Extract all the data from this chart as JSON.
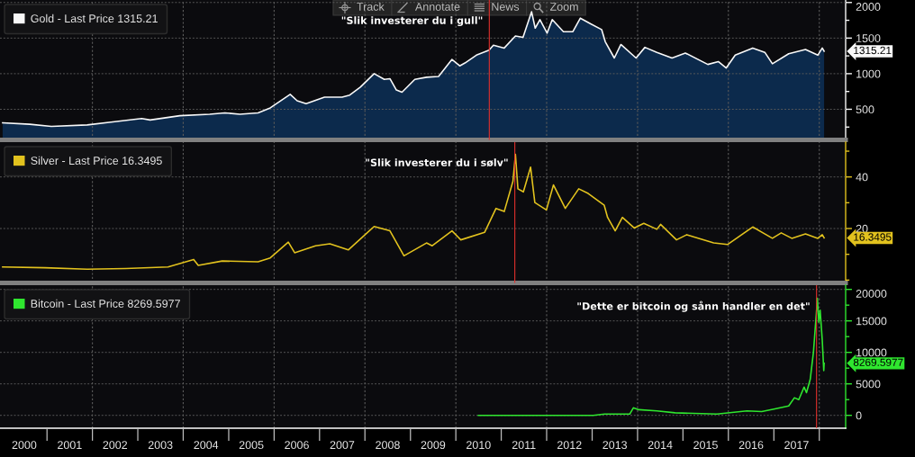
{
  "chart_data": [
    {
      "type": "area",
      "series": [
        {
          "name": "Gold - Last Price 1315.21",
          "color": "#f8f8f8",
          "x": [
            "2000-01-10",
            "2000-08-15",
            "2001-02-05",
            "2001-11-20",
            "2002-05-30",
            "2003-02-01",
            "2003-04-10",
            "2003-12-05",
            "2004-08-01",
            "2004-12-01",
            "2005-04-01",
            "2005-08-25",
            "2005-12-01",
            "2006-05-10",
            "2006-07-05",
            "2006-09-15",
            "2007-02-10",
            "2007-07-01",
            "2007-09-01",
            "2007-11-25",
            "2008-03-15",
            "2008-06-05",
            "2008-07-20",
            "2008-09-10",
            "2008-10-25",
            "2009-02-05",
            "2009-05-10",
            "2009-08-15",
            "2009-12-01",
            "2010-02-01",
            "2010-03-15",
            "2010-06-15",
            "2010-09-25",
            "2010-10-30",
            "2011-01-25",
            "2011-04-25",
            "2011-06-25",
            "2011-09-02",
            "2011-10-01",
            "2011-11-08",
            "2012-01-05",
            "2012-02-15",
            "2012-05-15",
            "2012-07-30",
            "2012-09-28",
            "2012-12-20",
            "2013-03-18",
            "2013-04-16",
            "2013-06-28",
            "2013-08-20",
            "2013-12-20",
            "2014-03-01",
            "2014-06-05",
            "2014-10-05",
            "2015-01-20",
            "2015-07-20",
            "2015-10-12",
            "2015-12-15",
            "2016-02-25",
            "2016-07-15",
            "2016-10-20",
            "2016-12-20",
            "2017-04-30",
            "2017-09-12",
            "2017-12-20",
            "2018-01-25",
            "2018-02-09"
          ],
          "values": [
            310,
            290,
            260,
            280,
            320,
            370,
            350,
            410,
            430,
            450,
            430,
            450,
            520,
            710,
            620,
            580,
            670,
            670,
            700,
            810,
            1000,
            920,
            930,
            770,
            740,
            920,
            950,
            960,
            1200,
            1110,
            1150,
            1260,
            1330,
            1400,
            1360,
            1530,
            1510,
            1870,
            1640,
            1760,
            1570,
            1760,
            1590,
            1590,
            1780,
            1700,
            1620,
            1450,
            1220,
            1410,
            1220,
            1370,
            1300,
            1220,
            1290,
            1130,
            1170,
            1080,
            1260,
            1360,
            1300,
            1140,
            1280,
            1340,
            1260,
            1360,
            1315.21
          ]
        }
      ],
      "xlim": [
        "1999-12-20",
        "2018-08-01"
      ],
      "ylim": [
        70,
        2035
      ],
      "yticks": [
        {
          "value": 250,
          "label": null
        },
        500,
        {
          "value": 750,
          "label": null
        },
        1000,
        {
          "value": 1250,
          "label": null
        },
        1500,
        {
          "value": 1750,
          "label": null
        },
        2000
      ],
      "tick_labels": "y",
      "grid": "y",
      "legend": "top left",
      "ref_lines": [
        {
          "axis": "x",
          "value": "2002-01-01",
          "color": "#5a5a5a",
          "line_style": "dotted"
        },
        {
          "axis": "x",
          "value": "2004-01-01",
          "color": "#5a5a5a",
          "line_style": "dotted"
        },
        {
          "axis": "x",
          "value": "2006-01-01",
          "color": "#5a5a5a",
          "line_style": "dotted"
        },
        {
          "axis": "x",
          "value": "2008-01-01",
          "color": "#5a5a5a",
          "line_style": "dotted"
        },
        {
          "axis": "x",
          "value": "2010-01-01",
          "color": "#5a5a5a",
          "line_style": "dotted"
        },
        {
          "axis": "x",
          "value": "2010-09-27",
          "label": "\"Slik investerer du i gull\"",
          "color": "#e0302c",
          "line_style": "solid"
        },
        {
          "axis": "x",
          "value": "2012-01-01",
          "color": "#5a5a5a",
          "line_style": "dotted"
        },
        {
          "axis": "x",
          "value": "2014-01-01",
          "color": "#5a5a5a",
          "line_style": "dotted"
        },
        {
          "axis": "x",
          "value": "2016-01-01",
          "color": "#5a5a5a",
          "line_style": "dotted"
        },
        {
          "axis": "x",
          "value": "2018-01-01",
          "color": "#5a5a5a",
          "line_style": "dotted"
        }
      ],
      "annotations": [
        "Track",
        "Annotate",
        "News",
        "Zoom",
        "1315.21"
      ]
    },
    {
      "type": "line",
      "series": [
        {
          "name": "Silver - Last Price 16.3495",
          "color": "#e2c21e",
          "x": [
            "2000-01-10",
            "2000-12-15",
            "2001-11-20",
            "2002-09-25",
            "2003-09-01",
            "2004-03-25",
            "2004-05-01",
            "2004-11-10",
            "2005-08-25",
            "2005-12-01",
            "2006-04-25",
            "2006-06-15",
            "2006-11-30",
            "2007-03-25",
            "2007-08-20",
            "2008-03-15",
            "2008-07-20",
            "2008-11-10",
            "2009-05-10",
            "2009-06-25",
            "2009-12-01",
            "2010-02-10",
            "2010-08-20",
            "2010-11-20",
            "2011-01-25",
            "2011-04-05",
            "2011-04-25",
            "2011-05-15",
            "2011-06-28",
            "2011-08-25",
            "2011-09-28",
            "2011-12-30",
            "2012-02-25",
            "2012-05-30",
            "2012-09-15",
            "2012-11-30",
            "2013-04-08",
            "2013-05-05",
            "2013-07-05",
            "2013-09-01",
            "2013-12-05",
            "2014-02-20",
            "2014-06-05",
            "2014-07-05",
            "2014-11-10",
            "2015-02-01",
            "2015-09-05",
            "2015-12-25",
            "2016-07-15",
            "2016-12-20",
            "2017-03-01",
            "2017-05-25",
            "2017-09-12",
            "2017-12-20",
            "2018-01-25",
            "2018-02-09"
          ],
          "values": [
            5.1,
            4.8,
            4.2,
            4.5,
            5.1,
            8.0,
            5.7,
            7.4,
            7.1,
            8.6,
            14.7,
            10.6,
            13.3,
            14.1,
            11.7,
            20.8,
            19.1,
            9.4,
            14.4,
            13.3,
            19.1,
            15.6,
            18.5,
            27.8,
            26.6,
            38.3,
            48.8,
            35.4,
            34.2,
            43.8,
            30.1,
            27.2,
            36.9,
            27.8,
            35.4,
            33.6,
            29.0,
            24.3,
            19.1,
            24.3,
            20.2,
            22.0,
            19.7,
            21.6,
            15.6,
            17.6,
            14.4,
            13.8,
            20.6,
            16.2,
            18.3,
            16.2,
            17.9,
            16.2,
            17.6,
            16.3495
          ]
        }
      ],
      "xlim": [
        "1999-12-20",
        "2018-08-01"
      ],
      "ylim": [
        -1.1,
        53.5
      ],
      "yticks": [
        {
          "value": 0,
          "label": null
        },
        {
          "value": 10,
          "label": null
        },
        20,
        {
          "value": 30,
          "label": null
        },
        40,
        {
          "value": 50,
          "label": null
        }
      ],
      "tick_labels": "y",
      "grid": "y",
      "legend": "top left",
      "ref_lines": [
        {
          "axis": "x",
          "value": "2002-01-01",
          "color": "#5a5a5a",
          "line_style": "dotted"
        },
        {
          "axis": "x",
          "value": "2004-01-01",
          "color": "#5a5a5a",
          "line_style": "dotted"
        },
        {
          "axis": "x",
          "value": "2006-01-01",
          "color": "#5a5a5a",
          "line_style": "dotted"
        },
        {
          "axis": "x",
          "value": "2008-01-01",
          "color": "#5a5a5a",
          "line_style": "dotted"
        },
        {
          "axis": "x",
          "value": "2010-01-01",
          "color": "#5a5a5a",
          "line_style": "dotted"
        },
        {
          "axis": "x",
          "value": "2011-04-20",
          "label": "\"Slik investerer du i sølv\"",
          "color": "#e0302c",
          "line_style": "solid"
        },
        {
          "axis": "x",
          "value": "2012-01-01",
          "color": "#5a5a5a",
          "line_style": "dotted"
        },
        {
          "axis": "x",
          "value": "2014-01-01",
          "color": "#5a5a5a",
          "line_style": "dotted"
        },
        {
          "axis": "x",
          "value": "2016-01-01",
          "color": "#5a5a5a",
          "line_style": "dotted"
        },
        {
          "axis": "x",
          "value": "2018-01-01",
          "color": "#5a5a5a",
          "line_style": "dotted"
        }
      ],
      "annotations": [
        "16.3495"
      ]
    },
    {
      "type": "line",
      "series": [
        {
          "name": "Bitcoin - Last Price 8269.5977",
          "color": "#2fe62f",
          "x": [
            "2010-07-01",
            "2013-01-10",
            "2013-04-10",
            "2013-10-30",
            "2013-11-28",
            "2014-01-10",
            "2014-06-05",
            "2014-10-30",
            "2015-10-01",
            "2016-05-30",
            "2016-09-25",
            "2017-01-01",
            "2017-04-30",
            "2017-06-15",
            "2017-07-20",
            "2017-09-01",
            "2017-09-20",
            "2017-10-20",
            "2017-11-15",
            "2017-12-17",
            "2017-12-28",
            "2018-01-08",
            "2018-01-25",
            "2018-02-06",
            "2018-02-09"
          ],
          "values": [
            0,
            0,
            200,
            200,
            1200,
            900,
            700,
            400,
            200,
            700,
            600,
            1000,
            1500,
            2800,
            2500,
            4500,
            3600,
            5700,
            10000,
            18600,
            14800,
            16700,
            11900,
            7100,
            8269.5977
          ]
        }
      ],
      "xlim": [
        "1999-12-20",
        "2018-08-01"
      ],
      "ylim": [
        -2040,
        20670
      ],
      "xticks": [
        {
          "value": "2000-07-02",
          "label": "2000"
        },
        {
          "value": "2001-01-01",
          "label": null
        },
        {
          "value": "2001-07-02",
          "label": "2001"
        },
        {
          "value": "2002-01-01",
          "label": null
        },
        {
          "value": "2002-07-02",
          "label": "2002"
        },
        {
          "value": "2003-01-01",
          "label": null
        },
        {
          "value": "2003-07-02",
          "label": "2003"
        },
        {
          "value": "2004-01-01",
          "label": null
        },
        {
          "value": "2004-07-02",
          "label": "2004"
        },
        {
          "value": "2005-01-01",
          "label": null
        },
        {
          "value": "2005-07-02",
          "label": "2005"
        },
        {
          "value": "2006-01-01",
          "label": null
        },
        {
          "value": "2006-07-02",
          "label": "2006"
        },
        {
          "value": "2007-01-01",
          "label": null
        },
        {
          "value": "2007-07-02",
          "label": "2007"
        },
        {
          "value": "2008-01-01",
          "label": null
        },
        {
          "value": "2008-07-02",
          "label": "2008"
        },
        {
          "value": "2009-01-01",
          "label": null
        },
        {
          "value": "2009-07-02",
          "label": "2009"
        },
        {
          "value": "2010-01-01",
          "label": null
        },
        {
          "value": "2010-07-02",
          "label": "2010"
        },
        {
          "value": "2011-01-01",
          "label": null
        },
        {
          "value": "2011-07-02",
          "label": "2011"
        },
        {
          "value": "2012-01-01",
          "label": null
        },
        {
          "value": "2012-07-02",
          "label": "2012"
        },
        {
          "value": "2013-01-01",
          "label": null
        },
        {
          "value": "2013-07-02",
          "label": "2013"
        },
        {
          "value": "2014-01-01",
          "label": null
        },
        {
          "value": "2014-07-02",
          "label": "2014"
        },
        {
          "value": "2015-01-01",
          "label": null
        },
        {
          "value": "2015-07-02",
          "label": "2015"
        },
        {
          "value": "2016-01-01",
          "label": null
        },
        {
          "value": "2016-07-02",
          "label": "2016"
        },
        {
          "value": "2017-01-01",
          "label": null
        },
        {
          "value": "2017-07-02",
          "label": "2017"
        },
        {
          "value": "2018-01-01",
          "label": null
        }
      ],
      "yticks": [
        0,
        {
          "value": 2500,
          "label": null
        },
        5000,
        {
          "value": 7500,
          "label": null
        },
        10000,
        {
          "value": 12500,
          "label": null
        },
        15000,
        {
          "value": 17500,
          "label": null
        },
        20000
      ],
      "grid": "y",
      "legend": "top left",
      "ref_lines": [
        {
          "axis": "x",
          "value": "2002-01-01",
          "color": "#5a5a5a",
          "line_style": "dotted"
        },
        {
          "axis": "x",
          "value": "2004-01-01",
          "color": "#5a5a5a",
          "line_style": "dotted"
        },
        {
          "axis": "x",
          "value": "2006-01-01",
          "color": "#5a5a5a",
          "line_style": "dotted"
        },
        {
          "axis": "x",
          "value": "2008-01-01",
          "color": "#5a5a5a",
          "line_style": "dotted"
        },
        {
          "axis": "x",
          "value": "2010-01-01",
          "color": "#5a5a5a",
          "line_style": "dotted"
        },
        {
          "axis": "x",
          "value": "2012-01-01",
          "color": "#5a5a5a",
          "line_style": "dotted"
        },
        {
          "axis": "x",
          "value": "2014-01-01",
          "color": "#5a5a5a",
          "line_style": "dotted"
        },
        {
          "axis": "x",
          "value": "2016-01-01",
          "color": "#5a5a5a",
          "line_style": "dotted"
        },
        {
          "axis": "x",
          "value": "2017-12-10",
          "label": "\"Dette er bitcoin og sånn handler en det\"",
          "color": "#e0302c",
          "line_style": "solid"
        },
        {
          "axis": "x",
          "value": "2018-01-01",
          "color": "#5a5a5a",
          "line_style": "dotted"
        }
      ],
      "annotations": [
        "8269.5977"
      ]
    }
  ]
}
